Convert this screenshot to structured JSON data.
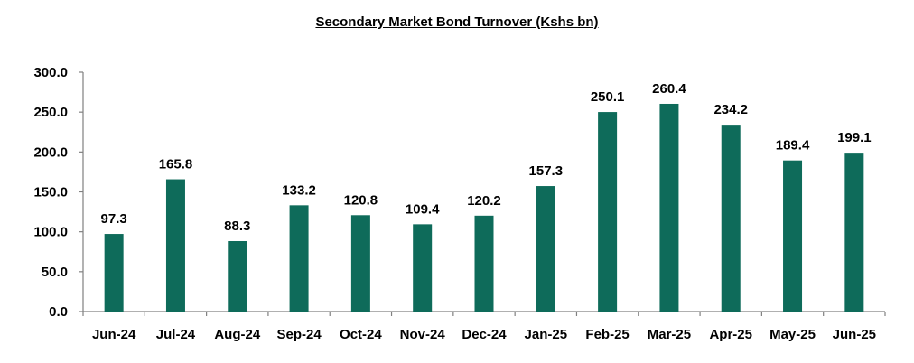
{
  "chart_data": {
    "type": "bar",
    "title": "Secondary Market Bond Turnover (Kshs bn)",
    "categories": [
      "Jun-24",
      "Jul-24",
      "Aug-24",
      "Sep-24",
      "Oct-24",
      "Nov-24",
      "Dec-24",
      "Jan-25",
      "Feb-25",
      "Mar-25",
      "Apr-25",
      "May-25",
      "Jun-25"
    ],
    "values": [
      97.3,
      165.8,
      88.3,
      133.2,
      120.8,
      109.4,
      120.2,
      157.3,
      250.1,
      260.4,
      234.2,
      189.4,
      199.1
    ],
    "data_labels": [
      "97.3",
      "165.8",
      "88.3",
      "133.2",
      "120.8",
      "109.4",
      "120.2",
      "157.3",
      "250.1",
      "260.4",
      "234.2",
      "189.4",
      "199.1"
    ],
    "y_ticks": [
      "0.0",
      "50.0",
      "100.0",
      "150.0",
      "200.0",
      "250.0",
      "300.0"
    ],
    "ylim": [
      0,
      300
    ],
    "grid": false,
    "legend": "none",
    "bar_color": "#0e6b5a"
  }
}
